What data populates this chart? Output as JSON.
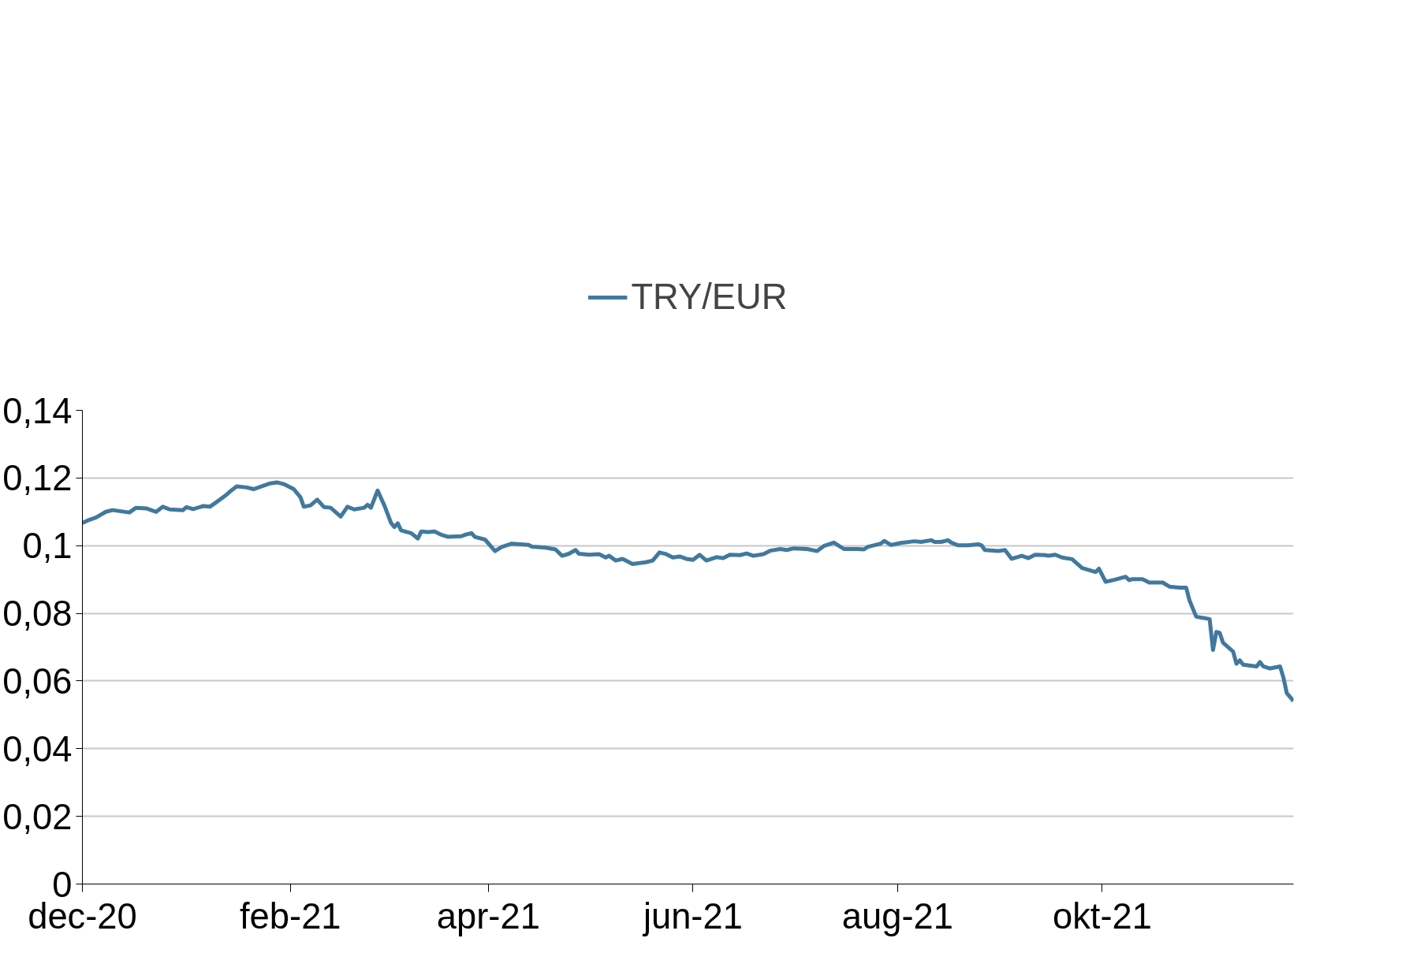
{
  "chart_data": {
    "type": "line",
    "legend": "top",
    "grid": "y",
    "line_style": "solid",
    "xlim": [
      "2020-12-01",
      "2021-11-27"
    ],
    "xticks": [
      {
        "value": "2020-12-01",
        "label": "dec-20"
      },
      {
        "value": "2021-02-01",
        "label": "feb-21"
      },
      {
        "value": "2021-04-01",
        "label": "apr-21"
      },
      {
        "value": "2021-06-01",
        "label": "jun-21"
      },
      {
        "value": "2021-08-01",
        "label": "aug-21"
      },
      {
        "value": "2021-10-01",
        "label": "okt-21"
      }
    ],
    "ylim": [
      0,
      0.14
    ],
    "yticks": [
      0,
      {
        "value": 0.02,
        "label": "0,02"
      },
      {
        "value": 0.04,
        "label": "0,04"
      },
      {
        "value": 0.06,
        "label": "0,06"
      },
      {
        "value": 0.08,
        "label": "0,08"
      },
      {
        "value": 0.1,
        "label": "0,1"
      },
      {
        "value": 0.12,
        "label": "0,12"
      },
      {
        "value": 0.14,
        "label": "0,14"
      }
    ],
    "x": [
      "2020-12-01",
      "2020-12-03",
      "2020-12-05",
      "2020-12-08",
      "2020-12-10",
      "2020-12-15",
      "2020-12-17",
      "2020-12-20",
      "2020-12-23",
      "2020-12-25",
      "2020-12-27",
      "2020-12-31",
      "2021-01-01",
      "2021-01-03",
      "2021-01-06",
      "2021-01-08",
      "2021-01-10",
      "2021-01-13",
      "2021-01-14",
      "2021-01-16",
      "2021-01-19",
      "2021-01-21",
      "2021-01-23",
      "2021-01-26",
      "2021-01-28",
      "2021-01-30",
      "2021-02-02",
      "2021-02-04",
      "2021-02-05",
      "2021-02-07",
      "2021-02-09",
      "2021-02-11",
      "2021-02-13",
      "2021-02-16",
      "2021-02-18",
      "2021-02-20",
      "2021-02-23",
      "2021-02-24",
      "2021-02-25",
      "2021-02-27",
      "2021-03-01",
      "2021-03-03",
      "2021-03-04",
      "2021-03-05",
      "2021-03-06",
      "2021-03-09",
      "2021-03-11",
      "2021-03-12",
      "2021-03-14",
      "2021-03-16",
      "2021-03-18",
      "2021-03-20",
      "2021-03-24",
      "2021-03-25",
      "2021-03-27",
      "2021-03-28",
      "2021-03-31",
      "2021-04-03",
      "2021-04-05",
      "2021-04-08",
      "2021-04-13",
      "2021-04-14",
      "2021-04-18",
      "2021-04-21",
      "2021-04-23",
      "2021-04-25",
      "2021-04-27",
      "2021-04-28",
      "2021-05-01",
      "2021-05-04",
      "2021-05-06",
      "2021-05-07",
      "2021-05-09",
      "2021-05-11",
      "2021-05-14",
      "2021-05-18",
      "2021-05-20",
      "2021-05-22",
      "2021-05-24",
      "2021-05-26",
      "2021-05-28",
      "2021-05-30",
      "2021-06-01",
      "2021-06-03",
      "2021-06-05",
      "2021-06-08",
      "2021-06-10",
      "2021-06-12",
      "2021-06-15",
      "2021-06-17",
      "2021-06-19",
      "2021-06-22",
      "2021-06-24",
      "2021-06-27",
      "2021-06-29",
      "2021-07-01",
      "2021-07-05",
      "2021-07-08",
      "2021-07-10",
      "2021-07-13",
      "2021-07-16",
      "2021-07-20",
      "2021-07-22",
      "2021-07-23",
      "2021-07-27",
      "2021-07-28",
      "2021-07-30",
      "2021-08-02",
      "2021-08-06",
      "2021-08-08",
      "2021-08-11",
      "2021-08-12",
      "2021-08-14",
      "2021-08-16",
      "2021-08-17",
      "2021-08-19",
      "2021-08-22",
      "2021-08-25",
      "2021-08-26",
      "2021-08-27",
      "2021-08-31",
      "2021-09-02",
      "2021-09-04",
      "2021-09-07",
      "2021-09-09",
      "2021-09-11",
      "2021-09-14",
      "2021-09-15",
      "2021-09-17",
      "2021-09-19",
      "2021-09-22",
      "2021-09-25",
      "2021-09-29",
      "2021-09-30",
      "2021-10-02",
      "2021-10-05",
      "2021-10-08",
      "2021-10-09",
      "2021-10-10",
      "2021-10-13",
      "2021-10-15",
      "2021-10-19",
      "2021-10-21",
      "2021-10-24",
      "2021-10-26",
      "2021-10-27",
      "2021-10-29",
      "2021-11-02",
      "2021-11-03",
      "2021-11-04",
      "2021-11-05",
      "2021-11-06",
      "2021-11-09",
      "2021-11-10",
      "2021-11-11",
      "2021-11-12",
      "2021-11-16",
      "2021-11-17",
      "2021-11-18",
      "2021-11-20",
      "2021-11-23",
      "2021-11-24",
      "2021-11-25",
      "2021-11-27"
    ],
    "series": [
      {
        "name": "TRY/EUR",
        "color": "#41799e",
        "values": [
          0.1067,
          0.1076,
          0.1083,
          0.11,
          0.1105,
          0.1098,
          0.1112,
          0.111,
          0.11,
          0.1115,
          0.1107,
          0.1105,
          0.1114,
          0.1108,
          0.1117,
          0.1115,
          0.1129,
          0.1151,
          0.116,
          0.1175,
          0.1172,
          0.1167,
          0.1174,
          0.1184,
          0.1187,
          0.1182,
          0.1167,
          0.1143,
          0.1115,
          0.1119,
          0.1136,
          0.1114,
          0.1112,
          0.1086,
          0.1115,
          0.1107,
          0.1112,
          0.1121,
          0.1112,
          0.1163,
          0.1119,
          0.1067,
          0.1055,
          0.1066,
          0.1045,
          0.1037,
          0.1021,
          0.1042,
          0.104,
          0.1042,
          0.1032,
          0.1026,
          0.1028,
          0.1032,
          0.1037,
          0.1026,
          0.1018,
          0.0984,
          0.0996,
          0.1006,
          0.1002,
          0.0997,
          0.0994,
          0.0989,
          0.097,
          0.0976,
          0.0987,
          0.0976,
          0.0973,
          0.0975,
          0.0965,
          0.097,
          0.0956,
          0.0961,
          0.0946,
          0.0951,
          0.0956,
          0.098,
          0.0975,
          0.0965,
          0.0968,
          0.0961,
          0.0958,
          0.0973,
          0.0956,
          0.0966,
          0.0963,
          0.0973,
          0.0972,
          0.0977,
          0.097,
          0.0975,
          0.0985,
          0.099,
          0.0987,
          0.0992,
          0.099,
          0.0984,
          0.0999,
          0.1009,
          0.099,
          0.099,
          0.0989,
          0.0996,
          0.1006,
          0.1014,
          0.1002,
          0.1008,
          0.1013,
          0.1011,
          0.1016,
          0.1011,
          0.1011,
          0.1016,
          0.1009,
          0.1001,
          0.1001,
          0.1004,
          0.1001,
          0.0987,
          0.0984,
          0.0987,
          0.0961,
          0.097,
          0.0963,
          0.0973,
          0.0972,
          0.097,
          0.0973,
          0.0965,
          0.096,
          0.0934,
          0.0922,
          0.0932,
          0.0893,
          0.09,
          0.0908,
          0.0898,
          0.0901,
          0.0901,
          0.0891,
          0.0891,
          0.0879,
          0.0876,
          0.0876,
          0.0838,
          0.079,
          0.0783,
          0.0692,
          0.0745,
          0.0742,
          0.0713,
          0.0687,
          0.0651,
          0.0661,
          0.0648,
          0.0643,
          0.0656,
          0.0643,
          0.0637,
          0.0643,
          0.061,
          0.0564,
          0.0541
        ]
      }
    ]
  }
}
